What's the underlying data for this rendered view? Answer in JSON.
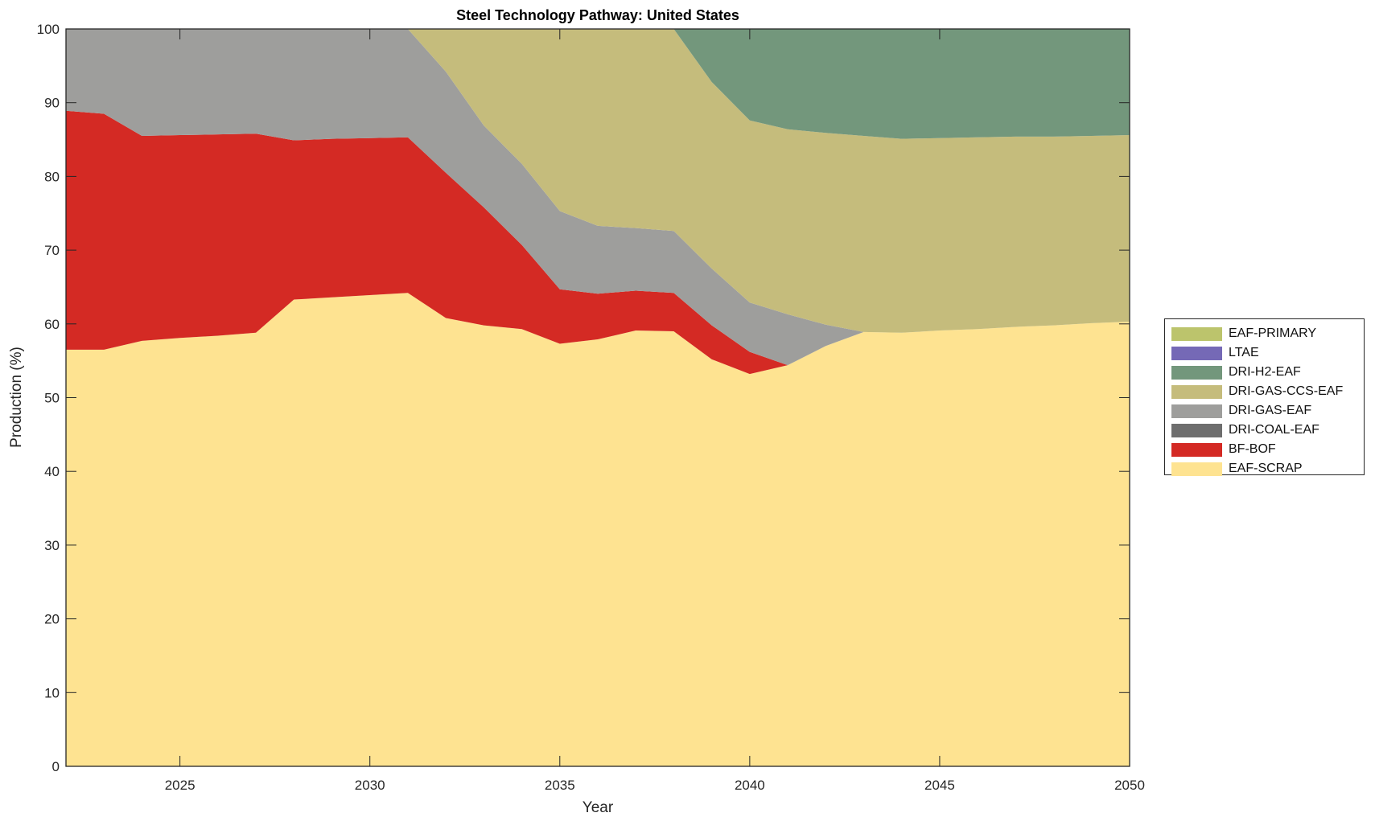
{
  "chart_data": {
    "type": "area",
    "title": "Steel Technology Pathway: United States",
    "xlabel": "Year",
    "ylabel": "Production (%)",
    "xlim": [
      2022,
      2050
    ],
    "ylim": [
      0,
      100
    ],
    "xticks": [
      2025,
      2030,
      2035,
      2040,
      2045,
      2050
    ],
    "yticks": [
      0,
      10,
      20,
      30,
      40,
      50,
      60,
      70,
      80,
      90,
      100
    ],
    "legend_placement": "right",
    "x": [
      2022,
      2023,
      2024,
      2025,
      2026,
      2027,
      2028,
      2029,
      2030,
      2031,
      2032,
      2033,
      2034,
      2035,
      2036,
      2037,
      2038,
      2039,
      2040,
      2041,
      2042,
      2043,
      2044,
      2045,
      2046,
      2047,
      2048,
      2049,
      2050
    ],
    "series": [
      {
        "name": "EAF-SCRAP",
        "color": "#fee391",
        "values": [
          56.5,
          56.5,
          57.7,
          58.1,
          58.4,
          58.8,
          63.3,
          63.6,
          63.9,
          64.2,
          60.8,
          59.8,
          59.3,
          57.3,
          57.9,
          59.1,
          59.0,
          55.2,
          53.2,
          54.4,
          57.0,
          58.9,
          58.8,
          59.1,
          59.3,
          59.6,
          59.8,
          60.1,
          60.3
        ]
      },
      {
        "name": "BF-BOF",
        "color": "#d42a24",
        "values": [
          32.4,
          32.0,
          27.8,
          27.5,
          27.3,
          27.0,
          21.6,
          21.5,
          21.3,
          21.1,
          19.7,
          16.0,
          11.4,
          7.4,
          6.2,
          5.4,
          5.2,
          4.6,
          3.0,
          0,
          0,
          0,
          0,
          0,
          0,
          0,
          0,
          0,
          0
        ]
      },
      {
        "name": "DRI-COAL-EAF",
        "color": "#6e6e6e",
        "values": [
          0,
          0,
          0,
          0,
          0,
          0,
          0,
          0,
          0,
          0,
          0,
          0,
          0,
          0,
          0,
          0,
          0,
          0,
          0,
          0,
          0,
          0,
          0,
          0,
          0,
          0,
          0,
          0,
          0
        ]
      },
      {
        "name": "DRI-GAS-EAF",
        "color": "#9e9e9c",
        "values": [
          11.1,
          11.5,
          14.5,
          14.4,
          14.3,
          14.2,
          15.1,
          14.9,
          14.8,
          14.7,
          13.7,
          11.1,
          11.0,
          10.6,
          9.2,
          8.5,
          8.4,
          7.7,
          6.7,
          6.9,
          2.9,
          0,
          0,
          0,
          0,
          0,
          0,
          0,
          0
        ]
      },
      {
        "name": "DRI-GAS-CCS-EAF",
        "color": "#c5bc7c",
        "values": [
          0,
          0,
          0,
          0,
          0,
          0,
          0,
          0,
          0,
          0,
          5.8,
          13.1,
          18.3,
          24.7,
          26.7,
          27.0,
          27.4,
          25.3,
          24.7,
          25.1,
          26.0,
          26.6,
          26.3,
          26.1,
          26.0,
          25.8,
          25.6,
          25.4,
          25.3
        ]
      },
      {
        "name": "DRI-H2-EAF",
        "color": "#73977c",
        "values": [
          0,
          0,
          0,
          0,
          0,
          0,
          0,
          0,
          0,
          0,
          0,
          0,
          0,
          0,
          0,
          0,
          0,
          7.2,
          12.4,
          13.6,
          14.1,
          14.5,
          14.9,
          14.8,
          14.7,
          14.6,
          14.6,
          14.5,
          14.4
        ]
      },
      {
        "name": "LTAE",
        "color": "#7569b6",
        "values": [
          0,
          0,
          0,
          0,
          0,
          0,
          0,
          0,
          0,
          0,
          0,
          0,
          0,
          0,
          0,
          0,
          0,
          0,
          0,
          0,
          0,
          0,
          0,
          0,
          0,
          0,
          0,
          0,
          0
        ]
      },
      {
        "name": "EAF-PRIMARY",
        "color": "#bcc46c",
        "values": [
          0,
          0,
          0,
          0,
          0,
          0,
          0,
          0,
          0,
          0,
          0,
          0,
          0,
          0,
          0,
          0,
          0,
          0,
          0,
          0,
          0,
          0,
          0,
          0,
          0,
          0,
          0,
          0,
          0
        ]
      }
    ]
  }
}
